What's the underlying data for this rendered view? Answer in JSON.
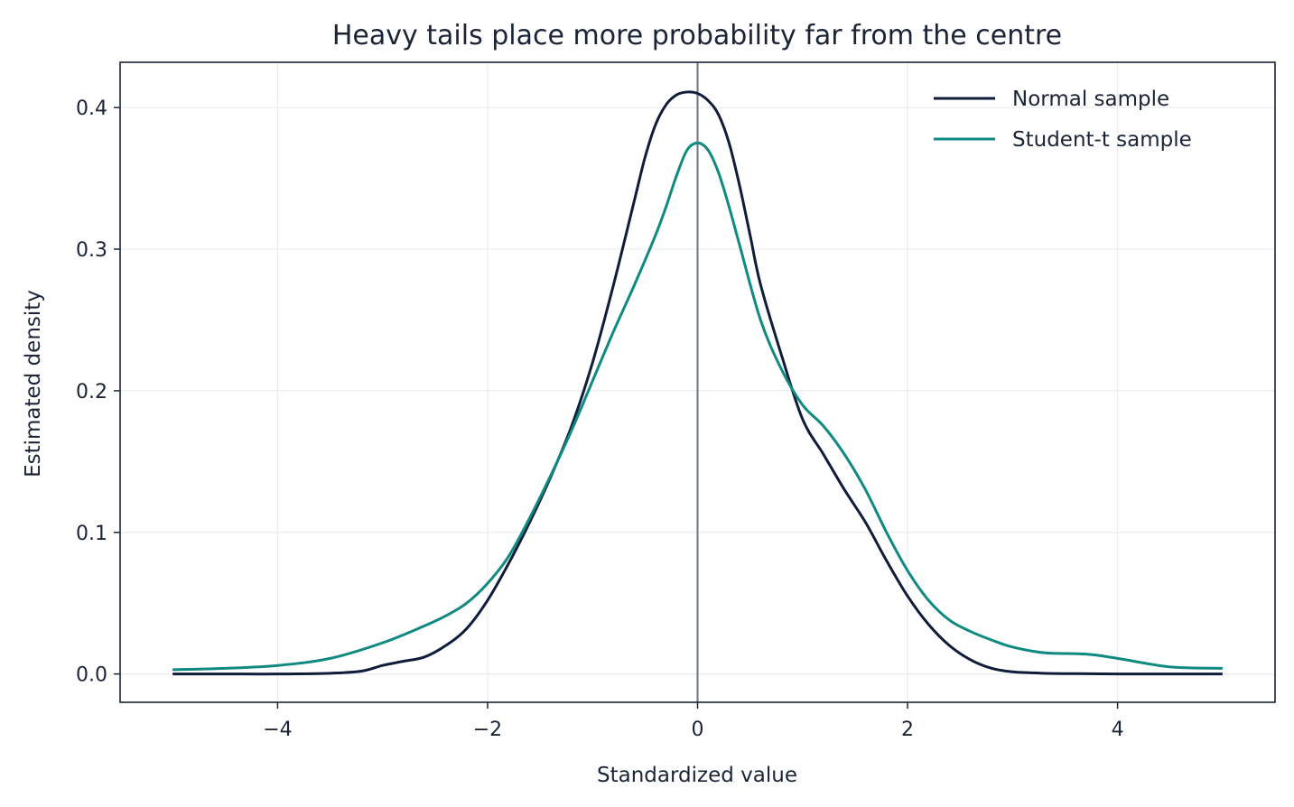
{
  "chart_data": {
    "type": "line",
    "title": "Heavy tails place more probability far from the centre",
    "xlabel": "Standardized value",
    "ylabel": "Estimated density",
    "xlim": [
      -5.5,
      5.5
    ],
    "ylim": [
      -0.02,
      0.432
    ],
    "xticks": [
      -4,
      -2,
      0,
      2,
      4
    ],
    "xtick_labels": [
      "−4",
      "−2",
      "0",
      "2",
      "4"
    ],
    "yticks": [
      0.0,
      0.1,
      0.2,
      0.3,
      0.4
    ],
    "ytick_labels": [
      "0.0",
      "0.1",
      "0.2",
      "0.3",
      "0.4"
    ],
    "grid": true,
    "legend_position": "top-right",
    "reference_line": {
      "orientation": "vertical",
      "x": 0,
      "color": "#6b7585"
    },
    "series": [
      {
        "name": "Normal sample",
        "color": "#0f1d3b",
        "x": [
          -5.0,
          -4.5,
          -4.0,
          -3.5,
          -3.2,
          -3.0,
          -2.8,
          -2.6,
          -2.4,
          -2.2,
          -2.0,
          -1.8,
          -1.6,
          -1.4,
          -1.2,
          -1.0,
          -0.8,
          -0.6,
          -0.5,
          -0.4,
          -0.3,
          -0.2,
          -0.1,
          0.0,
          0.1,
          0.2,
          0.3,
          0.4,
          0.5,
          0.6,
          0.8,
          1.0,
          1.2,
          1.4,
          1.6,
          1.8,
          2.0,
          2.2,
          2.4,
          2.6,
          2.8,
          3.0,
          3.3,
          3.6,
          4.0,
          4.5,
          5.0
        ],
        "y": [
          0.0,
          0.0,
          0.0,
          0.0005,
          0.002,
          0.006,
          0.009,
          0.012,
          0.02,
          0.032,
          0.052,
          0.078,
          0.107,
          0.139,
          0.175,
          0.22,
          0.275,
          0.335,
          0.365,
          0.388,
          0.402,
          0.409,
          0.411,
          0.41,
          0.405,
          0.395,
          0.375,
          0.345,
          0.31,
          0.275,
          0.225,
          0.18,
          0.155,
          0.13,
          0.107,
          0.08,
          0.055,
          0.035,
          0.02,
          0.01,
          0.004,
          0.0015,
          0.0005,
          0.0002,
          0.0,
          0.0,
          0.0
        ]
      },
      {
        "name": "Student-t sample",
        "color": "#0f8a80",
        "x": [
          -5.0,
          -4.5,
          -4.0,
          -3.5,
          -3.0,
          -2.6,
          -2.4,
          -2.2,
          -2.0,
          -1.8,
          -1.6,
          -1.4,
          -1.2,
          -1.0,
          -0.8,
          -0.6,
          -0.4,
          -0.3,
          -0.2,
          -0.1,
          0.0,
          0.1,
          0.2,
          0.3,
          0.4,
          0.6,
          0.8,
          1.0,
          1.2,
          1.4,
          1.6,
          1.8,
          2.0,
          2.2,
          2.4,
          2.6,
          2.8,
          3.0,
          3.3,
          3.7,
          4.0,
          4.5,
          5.0
        ],
        "y": [
          0.003,
          0.004,
          0.006,
          0.011,
          0.022,
          0.034,
          0.041,
          0.05,
          0.064,
          0.083,
          0.11,
          0.14,
          0.172,
          0.207,
          0.242,
          0.275,
          0.31,
          0.33,
          0.352,
          0.37,
          0.375,
          0.37,
          0.354,
          0.33,
          0.303,
          0.25,
          0.215,
          0.19,
          0.175,
          0.155,
          0.13,
          0.1,
          0.073,
          0.052,
          0.038,
          0.03,
          0.024,
          0.019,
          0.015,
          0.014,
          0.011,
          0.005,
          0.004
        ]
      }
    ]
  }
}
